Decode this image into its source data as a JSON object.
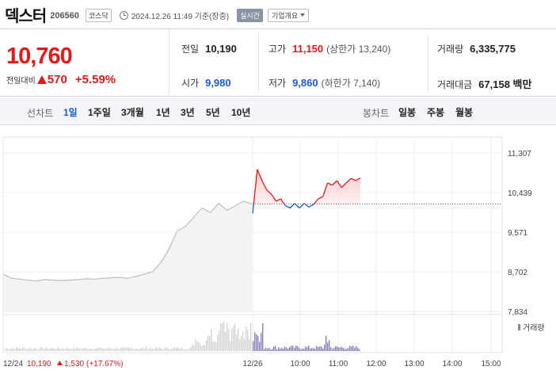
{
  "header": {
    "name": "덱스터",
    "code": "206560",
    "market": "코스닥",
    "datetime": "2024.12.26 11:49 기준(장중)",
    "realtime_label": "실시간",
    "company_label": "기업개요"
  },
  "quote": {
    "current_price": "10,760",
    "change_label": "전일대비",
    "change_value": "570",
    "change_rate": "+5.59%",
    "stats": {
      "prev_label": "전일",
      "prev_value": "10,190",
      "open_label": "시가",
      "open_value": "9,980",
      "high_label": "고가",
      "high_value": "11,150",
      "upper_limit": "(상한가 13,240)",
      "low_label": "저가",
      "low_value": "9,860",
      "lower_limit": "(하한가 7,140)",
      "volume_label": "거래량",
      "volume_value": "6,335,775",
      "amount_label": "거래대금",
      "amount_value": "67,158 백만"
    }
  },
  "toolbar": {
    "line_chart_label": "선차트",
    "line_periods": [
      "1일",
      "1주일",
      "3개월",
      "1년",
      "3년",
      "5년",
      "10년"
    ],
    "active_period": "1일",
    "candle_chart_label": "봉차트",
    "candle_periods": [
      "일봉",
      "주봉",
      "월봉"
    ]
  },
  "chart_data": {
    "type": "line",
    "yticks": [
      "11,307",
      "10,439",
      "9,571",
      "8,702",
      "7,834"
    ],
    "ylim": [
      7834,
      11307
    ],
    "xticks": [
      "12/26",
      "10:00",
      "11:00",
      "12:00",
      "13:00",
      "14:00",
      "15:00"
    ],
    "prev_close": 10190,
    "volume_legend": "거래량",
    "prev_day": {
      "label_date": "12/24",
      "label_close": "10,190",
      "label_change": "1,530",
      "label_rate": "(+17.67%)",
      "values": [
        8650,
        8560,
        8540,
        8520,
        8500,
        8530,
        8520,
        8510,
        8520,
        8530,
        8550,
        8540,
        8560,
        8570,
        8580,
        8560,
        8600,
        8650,
        8700,
        8900,
        9200,
        9600,
        9700,
        9900,
        10100,
        10000,
        10200,
        10050,
        10150,
        10250,
        10190
      ]
    },
    "today": {
      "values": [
        9980,
        10950,
        10700,
        10500,
        10400,
        10250,
        10300,
        10150,
        10100,
        10200,
        10100,
        10200,
        10120,
        10180,
        10300,
        10350,
        10650,
        10600,
        10700,
        10550,
        10650,
        10750,
        10700,
        10760
      ]
    }
  },
  "colors": {
    "up": "#e01b1b",
    "down": "#1a5bd0",
    "prev_line": "#bdbdbd",
    "volume": "#8b7fb8"
  }
}
